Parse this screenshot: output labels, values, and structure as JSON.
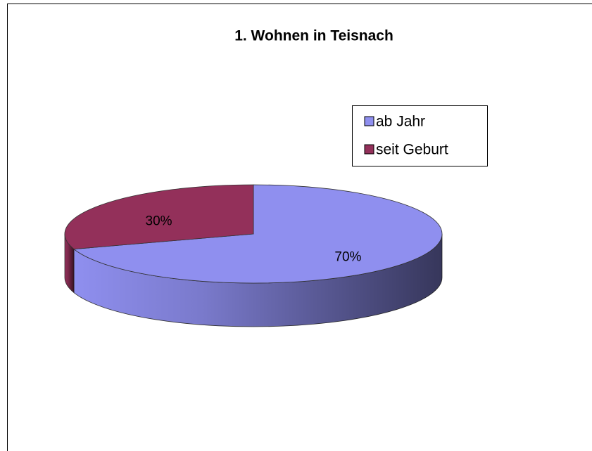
{
  "chart_data": {
    "type": "pie",
    "title": "1. Wohnen in Teisnach",
    "categories": [
      "ab Jahr",
      "seit Geburt"
    ],
    "values": [
      70,
      30
    ],
    "value_labels": [
      "70%",
      "30%"
    ],
    "colors": [
      "#8f8fef",
      "#93305a"
    ],
    "legend": "top-right"
  }
}
